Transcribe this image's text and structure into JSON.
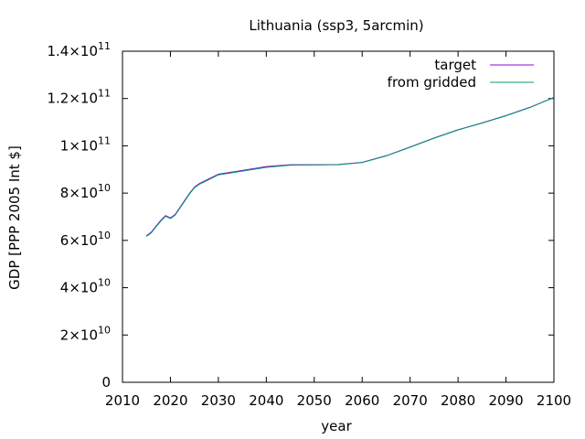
{
  "chart_data": {
    "type": "line",
    "title": "Lithuania (ssp3, 5arcmin)",
    "xlabel": "year",
    "ylabel": "GDP [PPP 2005 Int $]",
    "xlim": [
      2010,
      2100
    ],
    "ylim": [
      0,
      140000000000
    ],
    "legend_position": "top-right",
    "grid": false,
    "x_ticks": [
      "2010",
      "2020",
      "2030",
      "2040",
      "2050",
      "2060",
      "2070",
      "2080",
      "2090",
      "2100"
    ],
    "y_ticks": [
      {
        "value": 0,
        "mantissa": "0",
        "exponent": ""
      },
      {
        "value": 20000000000,
        "mantissa": "2×10",
        "exponent": "10"
      },
      {
        "value": 40000000000,
        "mantissa": "4×10",
        "exponent": "10"
      },
      {
        "value": 60000000000,
        "mantissa": "6×10",
        "exponent": "10"
      },
      {
        "value": 80000000000,
        "mantissa": "8×10",
        "exponent": "10"
      },
      {
        "value": 100000000000,
        "mantissa": "1×10",
        "exponent": "11"
      },
      {
        "value": 120000000000,
        "mantissa": "1.2×10",
        "exponent": "11"
      },
      {
        "value": 140000000000,
        "mantissa": "1.4×10",
        "exponent": "11"
      }
    ],
    "x": [
      2015,
      2016,
      2017,
      2018,
      2019,
      2020,
      2021,
      2022,
      2023,
      2024,
      2025,
      2026,
      2027,
      2028,
      2029,
      2030,
      2035,
      2040,
      2045,
      2050,
      2055,
      2060,
      2065,
      2070,
      2075,
      2080,
      2085,
      2090,
      2095,
      2100
    ],
    "series": [
      {
        "name": "target",
        "color": "#9400d3",
        "values": [
          62000000000,
          63500000000,
          66000000000,
          68500000000,
          70500000000,
          69500000000,
          71000000000,
          74000000000,
          77000000000,
          80000000000,
          82500000000,
          84000000000,
          85000000000,
          86000000000,
          87000000000,
          88000000000,
          89600000000,
          91200000000,
          92000000000,
          92000000000,
          92100000000,
          93000000000,
          95800000000,
          99500000000,
          103300000000,
          106800000000,
          109700000000,
          112800000000,
          116300000000,
          120500000000
        ]
      },
      {
        "name": "from gridded",
        "color": "#009e73",
        "values": [
          61700000000,
          63200000000,
          65700000000,
          68200000000,
          70200000000,
          69200000000,
          70700000000,
          73700000000,
          76700000000,
          79700000000,
          82200000000,
          83700000000,
          84700000000,
          85700000000,
          86700000000,
          87700000000,
          89300000000,
          90900000000,
          91800000000,
          91900000000,
          92000000000,
          92900000000,
          95700000000,
          99400000000,
          103200000000,
          106700000000,
          109600000000,
          112700000000,
          116200000000,
          120400000000
        ]
      }
    ]
  }
}
